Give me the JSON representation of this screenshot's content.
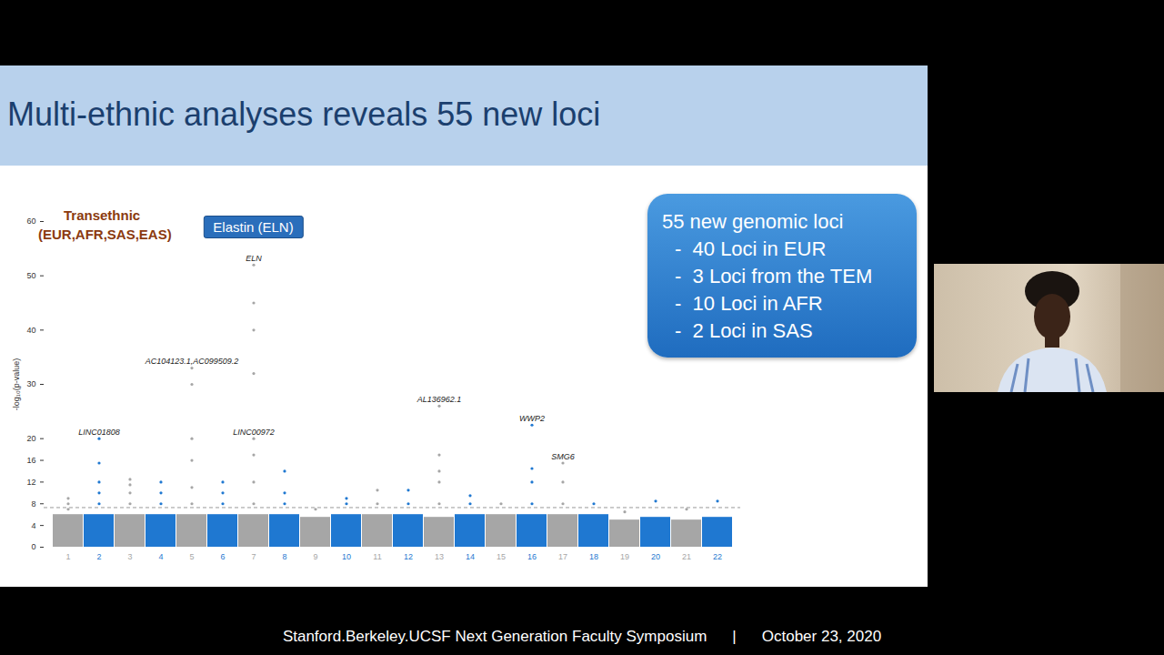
{
  "chart_data": {
    "type": "manhattan",
    "title": "Multi-ethnic analyses reveals 55 new loci",
    "subtitle": [
      "Transethnic",
      "(EUR,AFR,SAS,EAS)"
    ],
    "y_label": "-log₁₀(p-value)",
    "categories": [
      "1",
      "2",
      "3",
      "4",
      "5",
      "6",
      "7",
      "8",
      "9",
      "10",
      "11",
      "12",
      "13",
      "14",
      "15",
      "16",
      "17",
      "18",
      "19",
      "20",
      "21",
      "22"
    ],
    "colors": [
      "#a6a6a6",
      "#1f78d1",
      "#a6a6a6",
      "#1f78d1",
      "#a6a6a6",
      "#1f78d1",
      "#a6a6a6",
      "#1f78d1",
      "#a6a6a6",
      "#1f78d1",
      "#a6a6a6",
      "#1f78d1",
      "#a6a6a6",
      "#1f78d1",
      "#a6a6a6",
      "#1f78d1",
      "#a6a6a6",
      "#1f78d1",
      "#a6a6a6",
      "#1f78d1",
      "#a6a6a6",
      "#1f78d1"
    ],
    "values": [
      6,
      6,
      6,
      6,
      6,
      6,
      6,
      6,
      5.5,
      6,
      6,
      6,
      5.5,
      6,
      6,
      6,
      6,
      6,
      5,
      5.5,
      5,
      5.5
    ],
    "peaks": [
      [
        7,
        8,
        9
      ],
      [
        8,
        10,
        12,
        15.5,
        20
      ],
      [
        8,
        10,
        11.5,
        12.5
      ],
      [
        8,
        10,
        12
      ],
      [
        8,
        11,
        16,
        20,
        30,
        33
      ],
      [
        8,
        10,
        12
      ],
      [
        8,
        12,
        17,
        20,
        32,
        40,
        45,
        52
      ],
      [
        8,
        10,
        14
      ],
      [
        7
      ],
      [
        8,
        9
      ],
      [
        8,
        10.5
      ],
      [
        8,
        10.5
      ],
      [
        8,
        12,
        14,
        17,
        26
      ],
      [
        8,
        9.5
      ],
      [
        8
      ],
      [
        8,
        12,
        14.5,
        22.5
      ],
      [
        8,
        12,
        15.5
      ],
      [
        8
      ],
      [
        6.5
      ],
      [
        8.5
      ],
      [
        7
      ],
      [
        8.5
      ]
    ],
    "threshold": 7.3,
    "ylim": [
      0,
      60
    ],
    "yticks": [
      0,
      4,
      8,
      12,
      16,
      20,
      30,
      40,
      50,
      60
    ],
    "annotations": [
      {
        "text": "LINC01808",
        "chr": "2",
        "y": 20
      },
      {
        "text": "AC104123.1,AC099509.2",
        "chr": "5",
        "y": 33
      },
      {
        "text": "ELN",
        "chr": "7",
        "y": 52
      },
      {
        "text": "LINC00972",
        "chr": "7",
        "y": 20
      },
      {
        "text": "AL136962.1",
        "chr": "13",
        "y": 26
      },
      {
        "text": "WWP2",
        "chr": "16",
        "y": 22.5
      },
      {
        "text": "SMG6",
        "chr": "17",
        "y": 15.5
      }
    ],
    "highlight": {
      "text": "Elastin (ELN)",
      "chr": "7"
    },
    "callout": {
      "title": "55 new genomic loci",
      "items": [
        "-  40 Loci in EUR",
        "-  3 Loci from the TEM",
        "-  10 Loci in AFR",
        "-  2 Loci in SAS"
      ]
    },
    "footer": [
      "Stanford.Berkeley.UCSF Next Generation Faculty Symposium",
      "|",
      "October 23, 2020"
    ]
  }
}
